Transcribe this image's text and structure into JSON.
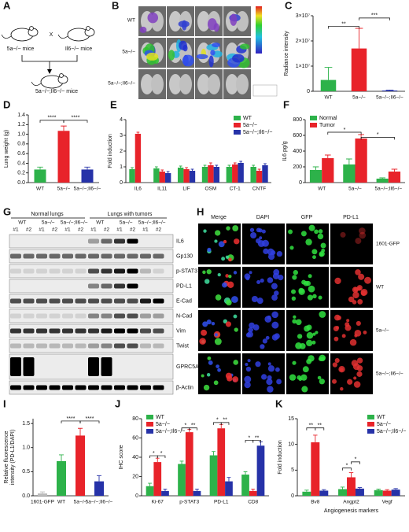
{
  "panels": {
    "A": {
      "label": "A",
      "mouse1": "5a−/− mice",
      "mouse2": "Il6−/− mice",
      "cross": "X",
      "result": "5a−/−;Il6−/− mice"
    },
    "B": {
      "label": "B",
      "rows": [
        "WT",
        "5a−/−",
        "5a−/−;Il6−/−"
      ]
    },
    "G": {
      "label": "G",
      "groups": [
        "Normal lungs",
        "Lungs with tumors"
      ],
      "genotypes": [
        "WT",
        "5a−/−",
        "5a−/−;Il6−/−",
        "WT",
        "5a−/−",
        "5a−/−;Il6−/−"
      ],
      "replicates": [
        "#1",
        "#2",
        "#1",
        "#2",
        "#1",
        "#2",
        "#1",
        "#2",
        "#1",
        "#2",
        "#1",
        "#2"
      ],
      "proteins": [
        "IL6",
        "Gp130",
        "p-STAT3",
        "PD-L1",
        "E-Cad",
        "N-Cad",
        "Vim",
        "Twist",
        "GPRC5A",
        "β-Actin"
      ]
    },
    "H": {
      "label": "H",
      "columns": [
        "Merge",
        "DAPI",
        "GFP",
        "PD-L1"
      ],
      "rows": [
        "1601-GFP",
        "WT",
        "5a−/−",
        "5a−/−;Il6−/−"
      ]
    }
  },
  "chart_data": [
    {
      "type": "bar",
      "panel": "C",
      "ylabel": "Radiance intensity",
      "categories": [
        "WT",
        "5a−/−",
        "5a−/−;Il6−/−"
      ],
      "values": [
        4500000,
        17000000,
        300000
      ],
      "errors": [
        5000000,
        8000000,
        200000
      ],
      "colors": [
        "#2db24a",
        "#e8232a",
        "#2632a8"
      ],
      "ylim": [
        0,
        30000000
      ],
      "yticks": [
        0,
        {
          "value": 10000000,
          "label": "1×10⁷"
        },
        {
          "value": 20000000,
          "label": "2×10⁷"
        },
        {
          "value": 30000000,
          "label": "3×10⁷"
        }
      ],
      "annotations": [
        "**",
        "***"
      ]
    },
    {
      "type": "bar",
      "panel": "D",
      "ylabel": "Lung weight (g)",
      "categories": [
        "WT",
        "5a−/−",
        "5a−/−;Il6−/−"
      ],
      "values": [
        0.27,
        1.07,
        0.27
      ],
      "errors": [
        0.05,
        0.1,
        0.05
      ],
      "colors": [
        "#2db24a",
        "#e8232a",
        "#2632a8"
      ],
      "ylim": [
        0,
        1.4
      ],
      "yticks": [
        {
          "value": 0,
          "label": "0.0"
        },
        0.2,
        0.4,
        0.6,
        0.8,
        {
          "value": 1,
          "label": "1.0"
        },
        1.2,
        1.4
      ],
      "annotations": [
        "****",
        "****"
      ]
    },
    {
      "type": "bar",
      "panel": "E",
      "ylabel": "Fold induction",
      "categories": [
        "IL6",
        "IL11",
        "LIF",
        "OSM",
        "CT-1",
        "CNTF"
      ],
      "series": [
        {
          "name": "WT",
          "color": "#2db24a",
          "values": [
            0.85,
            0.9,
            0.95,
            1.0,
            1.0,
            1.0
          ],
          "errors": [
            0.1,
            0.1,
            0.1,
            0.1,
            0.1,
            0.1
          ]
        },
        {
          "name": "5a−/−",
          "color": "#e8232a",
          "values": [
            3.1,
            0.7,
            0.85,
            1.1,
            1.15,
            0.75
          ],
          "errors": [
            0.1,
            0.1,
            0.1,
            0.15,
            0.1,
            0.1
          ]
        },
        {
          "name": "5a−/−;Il6−/−",
          "color": "#2632a8",
          "values": [
            null,
            0.6,
            0.75,
            1.0,
            1.25,
            1.1
          ],
          "errors": [
            null,
            0.1,
            0.1,
            0.1,
            0.1,
            0.1
          ]
        }
      ],
      "ylim": [
        0,
        4
      ],
      "yticks": [
        0,
        1,
        2,
        3,
        4
      ],
      "legend": "top-right"
    },
    {
      "type": "bar",
      "panel": "F",
      "ylabel": "IL6 pg/g",
      "categories": [
        "WT",
        "5a−/−",
        "5a−/−;Il6−/−"
      ],
      "series": [
        {
          "name": "Normal",
          "color": "#2db24a",
          "values": [
            160,
            230,
            50
          ],
          "errors": [
            40,
            70,
            10
          ]
        },
        {
          "name": "Tumor",
          "color": "#e8232a",
          "values": [
            310,
            560,
            140
          ],
          "errors": [
            40,
            50,
            30
          ]
        }
      ],
      "ylim": [
        0,
        800
      ],
      "yticks": [
        0,
        200,
        400,
        600,
        800
      ],
      "legend": "top-left",
      "annotations": [
        "*",
        "*"
      ]
    },
    {
      "type": "bar",
      "panel": "I",
      "ylabel": [
        "Relative fluorescence",
        "intensity (PD-L1/DAPI)"
      ],
      "categories": [
        "1601-GFP",
        "WT",
        "5a−/−",
        "5a−/−;Il6−/−"
      ],
      "values": [
        0.05,
        0.72,
        1.25,
        0.3
      ],
      "errors": [
        0.03,
        0.13,
        0.15,
        0.12
      ],
      "colors": [
        "#bbbbbb",
        "#2db24a",
        "#e8232a",
        "#2632a8"
      ],
      "ylim": [
        0,
        1.6
      ],
      "yticks": [
        {
          "value": 0,
          "label": "0.0"
        },
        0.5,
        {
          "value": 1,
          "label": "1.0"
        },
        1.5
      ],
      "annotations": [
        "****",
        "****"
      ]
    },
    {
      "type": "bar",
      "panel": "J",
      "ylabel": "IHC score",
      "categories": [
        "Ki-67",
        "p-STAT3",
        "PD-L1",
        "CD8"
      ],
      "series": [
        {
          "name": "WT",
          "color": "#2db24a",
          "values": [
            10,
            33,
            42,
            22
          ],
          "errors": [
            3,
            3,
            4,
            3
          ]
        },
        {
          "name": "5a−/−",
          "color": "#e8232a",
          "values": [
            35,
            66,
            70,
            5
          ],
          "errors": [
            4,
            3,
            4,
            2
          ]
        },
        {
          "name": "5a−/−;Il6−/−",
          "color": "#2632a8",
          "values": [
            5,
            5,
            15,
            52
          ],
          "errors": [
            2,
            2,
            4,
            4
          ]
        }
      ],
      "ylim": [
        0,
        80
      ],
      "yticks": [
        0,
        20,
        40,
        60,
        80
      ],
      "legend": "top-left",
      "annotations": [
        "*",
        "*",
        "*",
        "**",
        "*",
        "**",
        "*",
        "**"
      ]
    },
    {
      "type": "bar",
      "panel": "K",
      "ylabel": "Fold induction",
      "xlabel": "Angiogenesis markers",
      "categories": [
        "Bv8",
        "Angpt2",
        "Vegf"
      ],
      "series": [
        {
          "name": "WT",
          "color": "#2db24a",
          "values": [
            0.8,
            1.3,
            1.1
          ],
          "errors": [
            0.3,
            0.4,
            0.2
          ]
        },
        {
          "name": "5a−/−",
          "color": "#e8232a",
          "values": [
            10.4,
            3.6,
            1.0
          ],
          "errors": [
            1.4,
            0.9,
            0.2
          ]
        },
        {
          "name": "5a−/−;Il6−/−",
          "color": "#2632a8",
          "values": [
            1.0,
            1.4,
            1.2
          ],
          "errors": [
            0.2,
            0.2,
            0.2
          ]
        }
      ],
      "ylim": [
        0,
        15
      ],
      "yticks": [
        0,
        5,
        10,
        15
      ],
      "legend": "top-right",
      "annotations": [
        "**",
        "**",
        "*",
        "*"
      ]
    }
  ]
}
